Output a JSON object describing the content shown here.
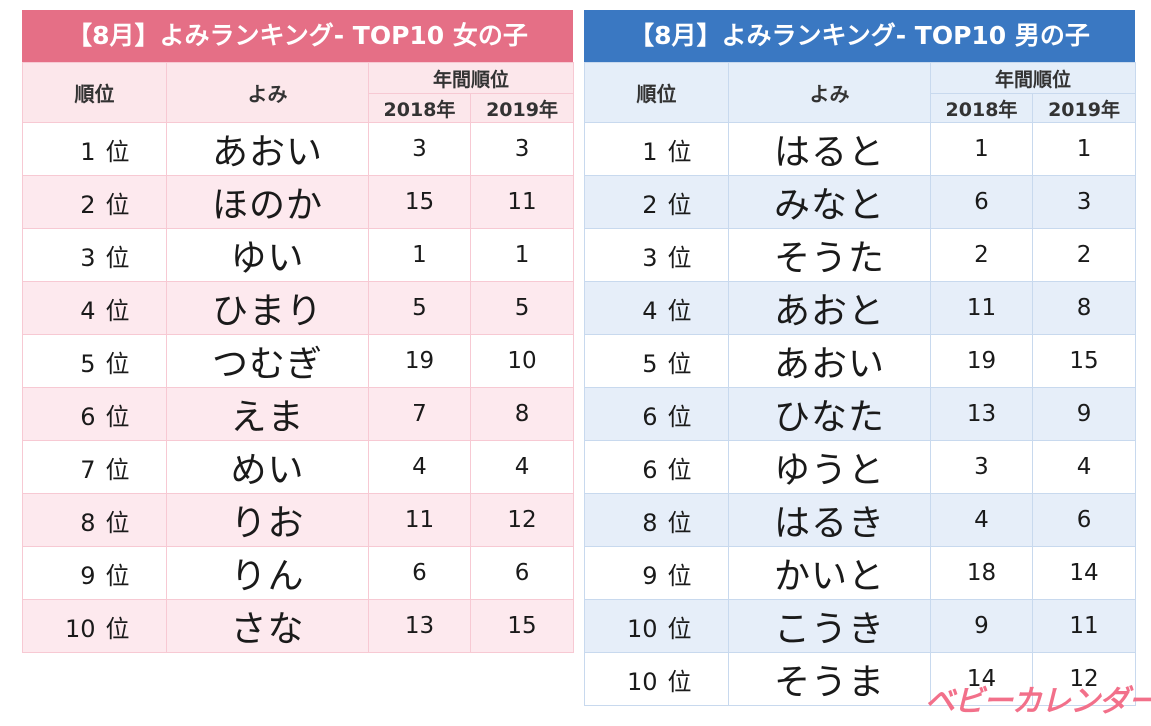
{
  "girls": {
    "title": "【8月】よみランキング- TOP10 女の子",
    "headers": {
      "rank": "順位",
      "name": "よみ",
      "group": "年間順位",
      "year1": "2018年",
      "year2": "2019年"
    },
    "rows": [
      {
        "num": "1",
        "unit": "位",
        "name": "あおい",
        "y2018": "3",
        "y2019": "3"
      },
      {
        "num": "2",
        "unit": "位",
        "name": "ほのか",
        "y2018": "15",
        "y2019": "11"
      },
      {
        "num": "3",
        "unit": "位",
        "name": "ゆい",
        "y2018": "1",
        "y2019": "1"
      },
      {
        "num": "4",
        "unit": "位",
        "name": "ひまり",
        "y2018": "5",
        "y2019": "5"
      },
      {
        "num": "5",
        "unit": "位",
        "name": "つむぎ",
        "y2018": "19",
        "y2019": "10"
      },
      {
        "num": "6",
        "unit": "位",
        "name": "えま",
        "y2018": "7",
        "y2019": "8"
      },
      {
        "num": "7",
        "unit": "位",
        "name": "めい",
        "y2018": "4",
        "y2019": "4"
      },
      {
        "num": "8",
        "unit": "位",
        "name": "りお",
        "y2018": "11",
        "y2019": "12"
      },
      {
        "num": "9",
        "unit": "位",
        "name": "りん",
        "y2018": "6",
        "y2019": "6"
      },
      {
        "num": "10",
        "unit": "位",
        "name": "さな",
        "y2018": "13",
        "y2019": "15"
      }
    ]
  },
  "boys": {
    "title": "【8月】よみランキング- TOP10 男の子",
    "headers": {
      "rank": "順位",
      "name": "よみ",
      "group": "年間順位",
      "year1": "2018年",
      "year2": "2019年"
    },
    "rows": [
      {
        "num": "1",
        "unit": "位",
        "name": "はると",
        "y2018": "1",
        "y2019": "1"
      },
      {
        "num": "2",
        "unit": "位",
        "name": "みなと",
        "y2018": "6",
        "y2019": "3"
      },
      {
        "num": "3",
        "unit": "位",
        "name": "そうた",
        "y2018": "2",
        "y2019": "2"
      },
      {
        "num": "4",
        "unit": "位",
        "name": "あおと",
        "y2018": "11",
        "y2019": "8"
      },
      {
        "num": "5",
        "unit": "位",
        "name": "あおい",
        "y2018": "19",
        "y2019": "15"
      },
      {
        "num": "6",
        "unit": "位",
        "name": "ひなた",
        "y2018": "13",
        "y2019": "9"
      },
      {
        "num": "6",
        "unit": "位",
        "name": "ゆうと",
        "y2018": "3",
        "y2019": "4"
      },
      {
        "num": "8",
        "unit": "位",
        "name": "はるき",
        "y2018": "4",
        "y2019": "6"
      },
      {
        "num": "9",
        "unit": "位",
        "name": "かいと",
        "y2018": "18",
        "y2019": "14"
      },
      {
        "num": "10",
        "unit": "位",
        "name": "こうき",
        "y2018": "9",
        "y2019": "11"
      },
      {
        "num": "10",
        "unit": "位",
        "name": "そうま",
        "y2018": "14",
        "y2019": "12"
      }
    ]
  },
  "brand": {
    "logo_text": "ベビーカレンダー",
    "color": "#f2708a"
  },
  "colors": {
    "girls_accent": "#e56f86",
    "boys_accent": "#3a78c2"
  }
}
